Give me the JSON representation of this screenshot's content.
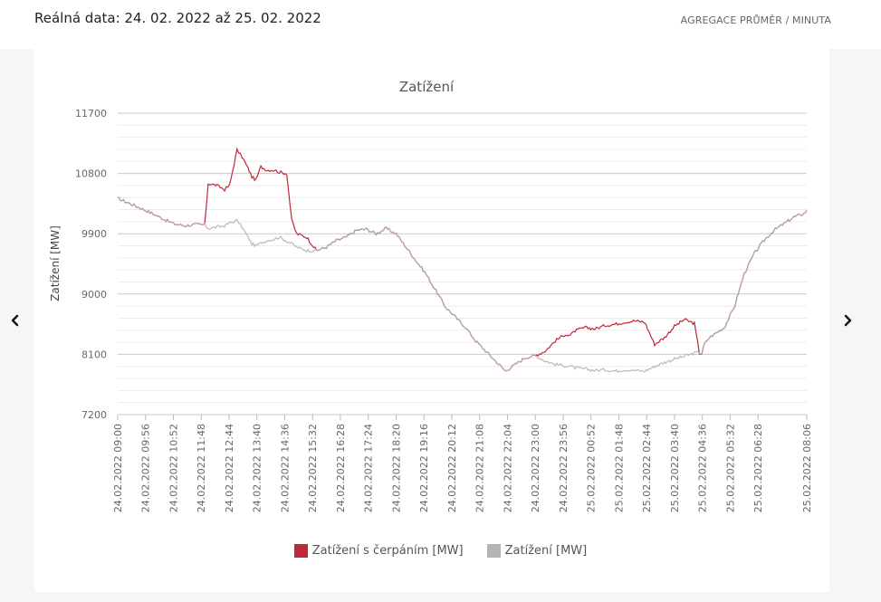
{
  "header": {
    "date_label": "Reálná data: 24. 02. 2022 až 25. 02. 2022",
    "aggregation": "AGREGACE PRŮMĚR / MINUTA"
  },
  "nav": {
    "prev_icon": "chevron-left-icon",
    "next_icon": "chevron-right-icon"
  },
  "colors": {
    "series_pumping": "#c0283a",
    "series_load": "#b3b3b8",
    "grid": "#c9c9c9",
    "axis_text": "#666666"
  },
  "chart_data": {
    "type": "line",
    "title": "Zatížení",
    "ylabel": "Zatížení [MW]",
    "xlabel": "",
    "ylim": [
      7200,
      11700
    ],
    "yticks": [
      7200,
      8100,
      9000,
      9900,
      10800,
      11700
    ],
    "grid": true,
    "legend_position": "bottom-center",
    "x_tick_labels": [
      "24.02.2022 09:00",
      "24.02.2022 09:56",
      "24.02.2022 10:52",
      "24.02.2022 11:48",
      "24.02.2022 12:44",
      "24.02.2022 13:40",
      "24.02.2022 14:36",
      "24.02.2022 15:32",
      "24.02.2022 16:28",
      "24.02.2022 17:24",
      "24.02.2022 18:20",
      "24.02.2022 19:16",
      "24.02.2022 20:12",
      "24.02.2022 21:08",
      "24.02.2022 22:04",
      "24.02.2022 23:00",
      "24.02.2022 23:56",
      "25.02.2022 00:52",
      "25.02.2022 01:48",
      "25.02.2022 02:44",
      "25.02.2022 03:40",
      "25.02.2022 04:36",
      "25.02.2022 05:32",
      "25.02.2022 06:28",
      "25.02.2022 08:06"
    ],
    "x_tick_minutes": [
      0,
      56,
      112,
      168,
      224,
      280,
      336,
      392,
      448,
      504,
      560,
      616,
      672,
      728,
      784,
      840,
      896,
      952,
      1008,
      1064,
      1120,
      1176,
      1232,
      1288,
      1386
    ],
    "x_range_minutes": [
      0,
      1386
    ],
    "series": [
      {
        "name": "Zatížení s čerpáním [MW]",
        "color": "#c0283a",
        "x": [
          0,
          56,
          112,
          135,
          160,
          175,
          182,
          200,
          215,
          225,
          240,
          250,
          262,
          270,
          278,
          288,
          300,
          315,
          325,
          340,
          350,
          360,
          380,
          400,
          420,
          440,
          460,
          480,
          500,
          520,
          540,
          560,
          580,
          600,
          620,
          640,
          660,
          680,
          700,
          720,
          740,
          760,
          780,
          800,
          820,
          840,
          860,
          880,
          900,
          910,
          920,
          940,
          960,
          980,
          1000,
          1020,
          1040,
          1060,
          1080,
          1100,
          1120,
          1140,
          1160,
          1170,
          1175,
          1180,
          1190,
          1200,
          1220,
          1240,
          1260,
          1280,
          1300,
          1320,
          1340,
          1360,
          1380,
          1386
        ],
        "y": [
          10430,
          10250,
          10050,
          10020,
          10040,
          10030,
          10650,
          10620,
          10560,
          10620,
          11150,
          11050,
          10880,
          10750,
          10700,
          10900,
          10850,
          10850,
          10820,
          10800,
          10100,
          9900,
          9850,
          9650,
          9700,
          9800,
          9850,
          9950,
          9970,
          9900,
          9980,
          9900,
          9700,
          9500,
          9300,
          9050,
          8800,
          8650,
          8500,
          8300,
          8150,
          8000,
          7850,
          7950,
          8050,
          8080,
          8150,
          8300,
          8400,
          8380,
          8450,
          8500,
          8480,
          8530,
          8550,
          8580,
          8600,
          8580,
          8250,
          8350,
          8520,
          8620,
          8560,
          8120,
          8110,
          8250,
          8350,
          8400,
          8500,
          8800,
          9300,
          9600,
          9800,
          9950,
          10050,
          10150,
          10200,
          10250
        ]
      },
      {
        "name": "Zatížení [MW]",
        "color": "#b3b3b8",
        "x": [
          0,
          56,
          112,
          135,
          160,
          175,
          182,
          200,
          215,
          225,
          240,
          250,
          262,
          270,
          278,
          288,
          300,
          315,
          325,
          340,
          350,
          360,
          380,
          400,
          420,
          440,
          460,
          480,
          500,
          520,
          540,
          560,
          580,
          600,
          620,
          640,
          660,
          680,
          700,
          720,
          740,
          760,
          780,
          800,
          820,
          840,
          860,
          880,
          900,
          910,
          920,
          940,
          960,
          980,
          1000,
          1020,
          1040,
          1060,
          1080,
          1100,
          1120,
          1140,
          1160,
          1170,
          1175,
          1180,
          1190,
          1200,
          1220,
          1240,
          1260,
          1280,
          1300,
          1320,
          1340,
          1360,
          1380,
          1386
        ],
        "y": [
          10430,
          10250,
          10050,
          10020,
          10040,
          10030,
          9980,
          10000,
          10020,
          10060,
          10100,
          10000,
          9850,
          9750,
          9720,
          9760,
          9800,
          9820,
          9850,
          9790,
          9750,
          9700,
          9650,
          9650,
          9700,
          9800,
          9850,
          9950,
          9970,
          9900,
          9980,
          9900,
          9700,
          9500,
          9300,
          9050,
          8800,
          8650,
          8500,
          8300,
          8150,
          8000,
          7850,
          7950,
          8050,
          8080,
          8000,
          7950,
          7930,
          7920,
          7900,
          7880,
          7860,
          7870,
          7850,
          7870,
          7860,
          7850,
          7920,
          7980,
          8030,
          8070,
          8120,
          8130,
          8110,
          8250,
          8350,
          8400,
          8500,
          8800,
          9300,
          9600,
          9800,
          9950,
          10050,
          10150,
          10200,
          10250
        ]
      }
    ]
  },
  "legend": {
    "items": [
      {
        "label": "Zatížení s čerpáním [MW]",
        "color": "#c0283a"
      },
      {
        "label": "Zatížení [MW]",
        "color": "#b3b3b8"
      }
    ]
  }
}
